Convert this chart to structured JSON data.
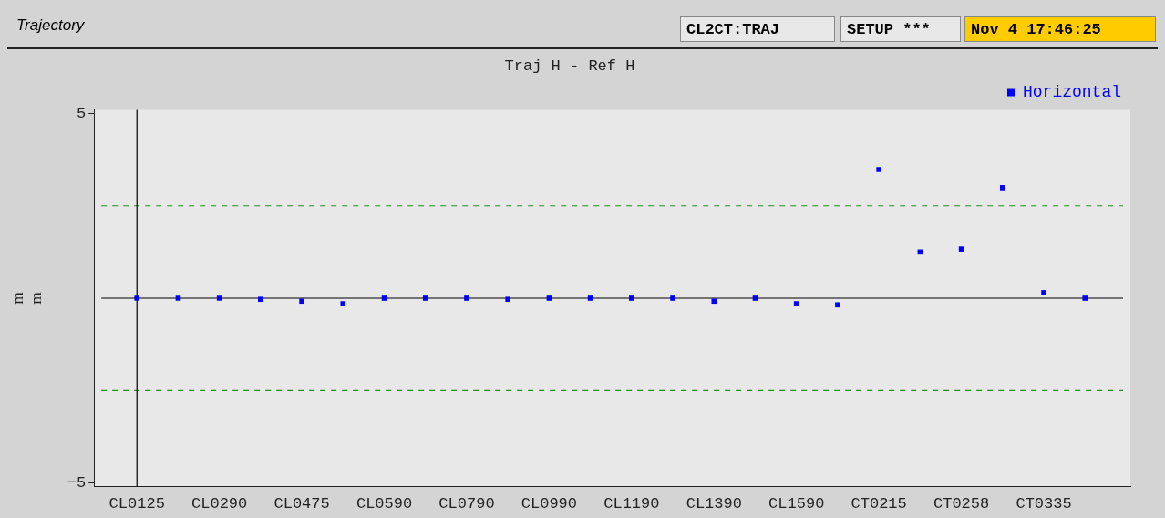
{
  "chart_data": {
    "type": "scatter",
    "title": "Traj H - Ref H",
    "ylabel": "mm",
    "annotations": [
      "Trajectory",
      "CL2CT:TRAJ",
      "SETUP ***",
      "Nov  4 17:46:25"
    ],
    "categories": [
      "CL0125",
      null,
      "CL0290",
      null,
      "CL0475",
      null,
      "CL0590",
      null,
      "CL0790",
      null,
      "CL0990",
      null,
      "CL1190",
      null,
      "CL1390",
      null,
      "CL1590",
      null,
      "CT0215",
      null,
      "CT0258",
      null,
      "CT0335",
      null
    ],
    "series": [
      {
        "name": "Horizontal",
        "color": "#0000ff",
        "values": [
          0,
          0,
          0,
          -0.03,
          -0.08,
          -0.15,
          0,
          0,
          0,
          -0.03,
          0,
          0,
          0,
          0,
          -0.08,
          0,
          -0.15,
          -0.18,
          3.48,
          1.25,
          1.33,
          2.99,
          0.15,
          0
        ]
      }
    ],
    "ylim": [
      -5.1,
      5.1
    ],
    "yticks": [
      5,
      -5
    ],
    "grid": false,
    "legend": "top right",
    "marker": "square",
    "ref_lines": [
      {
        "axis": "y",
        "value": 0,
        "color": "#000000",
        "line_style": "solid"
      },
      {
        "axis": "y",
        "value": 2.5,
        "color": "#228b22",
        "line_style": "dashed"
      },
      {
        "axis": "y",
        "value": -2.5,
        "color": "#228b22",
        "line_style": "dashed"
      },
      {
        "axis": "x",
        "value": "CL0125",
        "color": "#000000",
        "line_style": "solid"
      }
    ]
  }
}
